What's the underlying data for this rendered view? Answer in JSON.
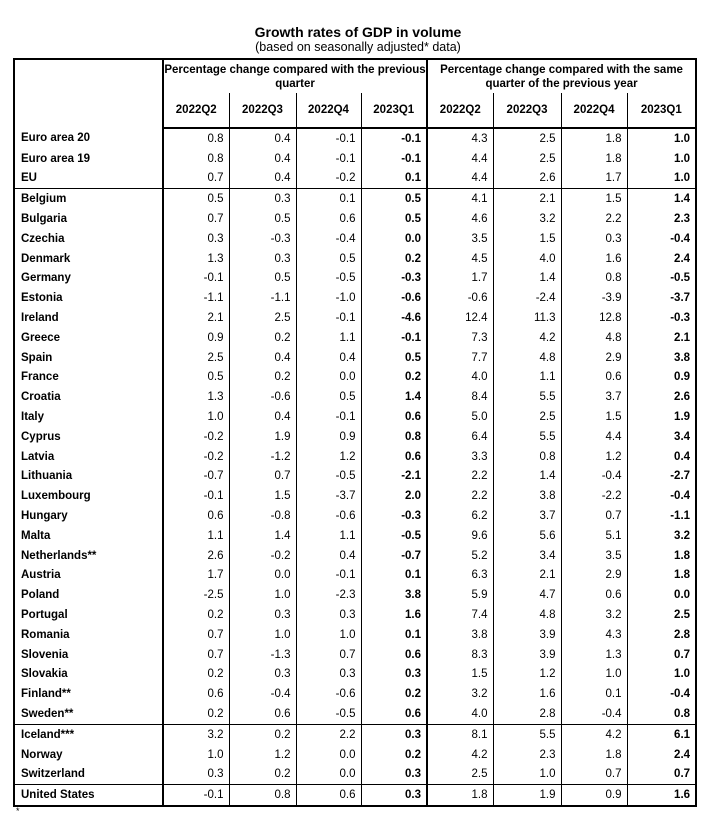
{
  "title": "Growth rates of GDP in volume",
  "subtitle": "(based on seasonally adjusted* data)",
  "group_headers": [
    "Percentage change compared with the previous quarter",
    "Percentage change compared with the same quarter of the previous year"
  ],
  "quarters": [
    "2022Q2",
    "2022Q3",
    "2022Q4",
    "2023Q1",
    "2022Q2",
    "2022Q3",
    "2022Q4",
    "2023Q1"
  ],
  "rows": [
    {
      "name": "Euro area 20",
      "v": [
        "0.8",
        "0.4",
        "-0.1",
        "-0.1",
        "4.3",
        "2.5",
        "1.8",
        "1.0"
      ]
    },
    {
      "name": "Euro area 19",
      "v": [
        "0.8",
        "0.4",
        "-0.1",
        "-0.1",
        "4.4",
        "2.5",
        "1.8",
        "1.0"
      ]
    },
    {
      "name": "EU",
      "v": [
        "0.7",
        "0.4",
        "-0.2",
        "0.1",
        "4.4",
        "2.6",
        "1.7",
        "1.0"
      ]
    },
    {
      "name": "Belgium",
      "v": [
        "0.5",
        "0.3",
        "0.1",
        "0.5",
        "4.1",
        "2.1",
        "1.5",
        "1.4"
      ]
    },
    {
      "name": "Bulgaria",
      "v": [
        "0.7",
        "0.5",
        "0.6",
        "0.5",
        "4.6",
        "3.2",
        "2.2",
        "2.3"
      ]
    },
    {
      "name": "Czechia",
      "v": [
        "0.3",
        "-0.3",
        "-0.4",
        "0.0",
        "3.5",
        "1.5",
        "0.3",
        "-0.4"
      ]
    },
    {
      "name": "Denmark",
      "v": [
        "1.3",
        "0.3",
        "0.5",
        "0.2",
        "4.5",
        "4.0",
        "1.6",
        "2.4"
      ]
    },
    {
      "name": "Germany",
      "v": [
        "-0.1",
        "0.5",
        "-0.5",
        "-0.3",
        "1.7",
        "1.4",
        "0.8",
        "-0.5"
      ]
    },
    {
      "name": "Estonia",
      "v": [
        "-1.1",
        "-1.1",
        "-1.0",
        "-0.6",
        "-0.6",
        "-2.4",
        "-3.9",
        "-3.7"
      ]
    },
    {
      "name": "Ireland",
      "v": [
        "2.1",
        "2.5",
        "-0.1",
        "-4.6",
        "12.4",
        "11.3",
        "12.8",
        "-0.3"
      ]
    },
    {
      "name": "Greece",
      "v": [
        "0.9",
        "0.2",
        "1.1",
        "-0.1",
        "7.3",
        "4.2",
        "4.8",
        "2.1"
      ]
    },
    {
      "name": "Spain",
      "v": [
        "2.5",
        "0.4",
        "0.4",
        "0.5",
        "7.7",
        "4.8",
        "2.9",
        "3.8"
      ]
    },
    {
      "name": "France",
      "v": [
        "0.5",
        "0.2",
        "0.0",
        "0.2",
        "4.0",
        "1.1",
        "0.6",
        "0.9"
      ]
    },
    {
      "name": "Croatia",
      "v": [
        "1.3",
        "-0.6",
        "0.5",
        "1.4",
        "8.4",
        "5.5",
        "3.7",
        "2.6"
      ]
    },
    {
      "name": "Italy",
      "v": [
        "1.0",
        "0.4",
        "-0.1",
        "0.6",
        "5.0",
        "2.5",
        "1.5",
        "1.9"
      ]
    },
    {
      "name": "Cyprus",
      "v": [
        "-0.2",
        "1.9",
        "0.9",
        "0.8",
        "6.4",
        "5.5",
        "4.4",
        "3.4"
      ]
    },
    {
      "name": "Latvia",
      "v": [
        "-0.2",
        "-1.2",
        "1.2",
        "0.6",
        "3.3",
        "0.8",
        "1.2",
        "0.4"
      ]
    },
    {
      "name": "Lithuania",
      "v": [
        "-0.7",
        "0.7",
        "-0.5",
        "-2.1",
        "2.2",
        "1.4",
        "-0.4",
        "-2.7"
      ]
    },
    {
      "name": "Luxembourg",
      "v": [
        "-0.1",
        "1.5",
        "-3.7",
        "2.0",
        "2.2",
        "3.8",
        "-2.2",
        "-0.4"
      ]
    },
    {
      "name": "Hungary",
      "v": [
        "0.6",
        "-0.8",
        "-0.6",
        "-0.3",
        "6.2",
        "3.7",
        "0.7",
        "-1.1"
      ]
    },
    {
      "name": "Malta",
      "v": [
        "1.1",
        "1.4",
        "1.1",
        "-0.5",
        "9.6",
        "5.6",
        "5.1",
        "3.2"
      ]
    },
    {
      "name": "Netherlands**",
      "v": [
        "2.6",
        "-0.2",
        "0.4",
        "-0.7",
        "5.2",
        "3.4",
        "3.5",
        "1.8"
      ]
    },
    {
      "name": "Austria",
      "v": [
        "1.7",
        "0.0",
        "-0.1",
        "0.1",
        "6.3",
        "2.1",
        "2.9",
        "1.8"
      ]
    },
    {
      "name": "Poland",
      "v": [
        "-2.5",
        "1.0",
        "-2.3",
        "3.8",
        "5.9",
        "4.7",
        "0.6",
        "0.0"
      ]
    },
    {
      "name": "Portugal",
      "v": [
        "0.2",
        "0.3",
        "0.3",
        "1.6",
        "7.4",
        "4.8",
        "3.2",
        "2.5"
      ]
    },
    {
      "name": "Romania",
      "v": [
        "0.7",
        "1.0",
        "1.0",
        "0.1",
        "3.8",
        "3.9",
        "4.3",
        "2.8"
      ]
    },
    {
      "name": "Slovenia",
      "v": [
        "0.7",
        "-1.3",
        "0.7",
        "0.6",
        "8.3",
        "3.9",
        "1.3",
        "0.7"
      ]
    },
    {
      "name": "Slovakia",
      "v": [
        "0.2",
        "0.3",
        "0.3",
        "0.3",
        "1.5",
        "1.2",
        "1.0",
        "1.0"
      ]
    },
    {
      "name": "Finland**",
      "v": [
        "0.6",
        "-0.4",
        "-0.6",
        "0.2",
        "3.2",
        "1.6",
        "0.1",
        "-0.4"
      ]
    },
    {
      "name": "Sweden**",
      "v": [
        "0.2",
        "0.6",
        "-0.5",
        "0.6",
        "4.0",
        "2.8",
        "-0.4",
        "0.8"
      ]
    },
    {
      "name": "Iceland***",
      "v": [
        "3.2",
        "0.2",
        "2.2",
        "0.3",
        "8.1",
        "5.5",
        "4.2",
        "6.1"
      ]
    },
    {
      "name": "Norway",
      "v": [
        "1.0",
        "1.2",
        "0.0",
        "0.2",
        "4.2",
        "2.3",
        "1.8",
        "2.4"
      ]
    },
    {
      "name": "Switzerland",
      "v": [
        "0.3",
        "0.2",
        "0.0",
        "0.3",
        "2.5",
        "1.0",
        "0.7",
        "0.7"
      ]
    },
    {
      "name": "United States",
      "v": [
        "-0.1",
        "0.8",
        "0.6",
        "0.3",
        "1.8",
        "1.9",
        "0.9",
        "1.6"
      ]
    }
  ],
  "separator_before": [
    "Belgium",
    "Iceland***",
    "United States"
  ],
  "footnote": "*"
}
